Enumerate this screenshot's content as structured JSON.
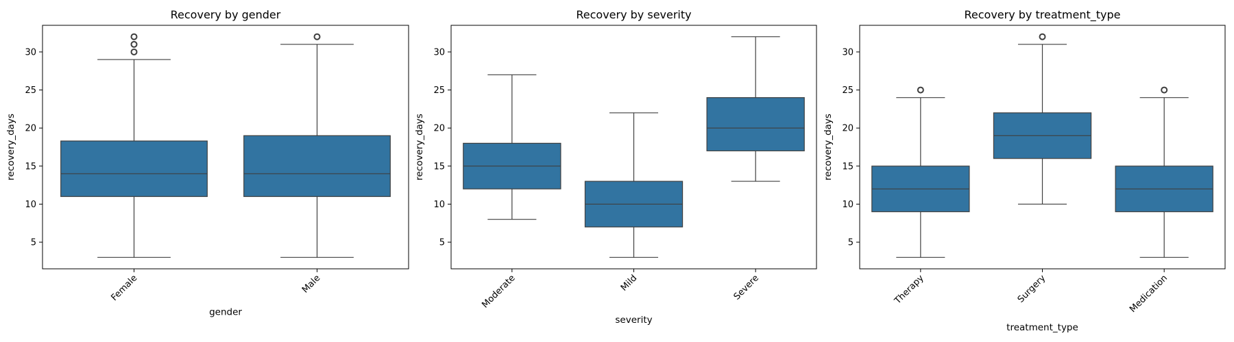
{
  "chart_data": [
    {
      "type": "box",
      "title": "Recovery by gender",
      "xlabel": "gender",
      "ylabel": "recovery_days",
      "ylim": [
        1.5,
        33.5
      ],
      "yticks": [
        5,
        10,
        15,
        20,
        25,
        30
      ],
      "color": "#3274a1",
      "categories": [
        "Female",
        "Male"
      ],
      "boxes": [
        {
          "whislo": 3,
          "q1": 11,
          "med": 14,
          "q3": 18.3,
          "whishi": 29,
          "fliers": [
            30,
            31,
            32
          ]
        },
        {
          "whislo": 3,
          "q1": 11,
          "med": 14,
          "q3": 19,
          "whishi": 31,
          "fliers": [
            32
          ]
        }
      ]
    },
    {
      "type": "box",
      "title": "Recovery by severity",
      "xlabel": "severity",
      "ylabel": "recovery_days",
      "ylim": [
        1.5,
        33.5
      ],
      "yticks": [
        5,
        10,
        15,
        20,
        25,
        30
      ],
      "color": "#3274a1",
      "categories": [
        "Moderate",
        "Mild",
        "Severe"
      ],
      "boxes": [
        {
          "whislo": 8,
          "q1": 12,
          "med": 15,
          "q3": 18,
          "whishi": 27,
          "fliers": []
        },
        {
          "whislo": 3,
          "q1": 7,
          "med": 10,
          "q3": 13,
          "whishi": 22,
          "fliers": []
        },
        {
          "whislo": 13,
          "q1": 17,
          "med": 20,
          "q3": 24,
          "whishi": 32,
          "fliers": []
        }
      ]
    },
    {
      "type": "box",
      "title": "Recovery by treatment_type",
      "xlabel": "treatment_type",
      "ylabel": "recovery_days",
      "ylim": [
        1.5,
        33.5
      ],
      "yticks": [
        5,
        10,
        15,
        20,
        25,
        30
      ],
      "color": "#3274a1",
      "categories": [
        "Therapy",
        "Surgery",
        "Medication"
      ],
      "boxes": [
        {
          "whislo": 3,
          "q1": 9,
          "med": 12,
          "q3": 15,
          "whishi": 24,
          "fliers": [
            25
          ]
        },
        {
          "whislo": 10,
          "q1": 16,
          "med": 19,
          "q3": 22,
          "whishi": 31,
          "fliers": [
            32
          ]
        },
        {
          "whislo": 3,
          "q1": 9,
          "med": 12,
          "q3": 15,
          "whishi": 24,
          "fliers": [
            25
          ]
        }
      ]
    }
  ]
}
